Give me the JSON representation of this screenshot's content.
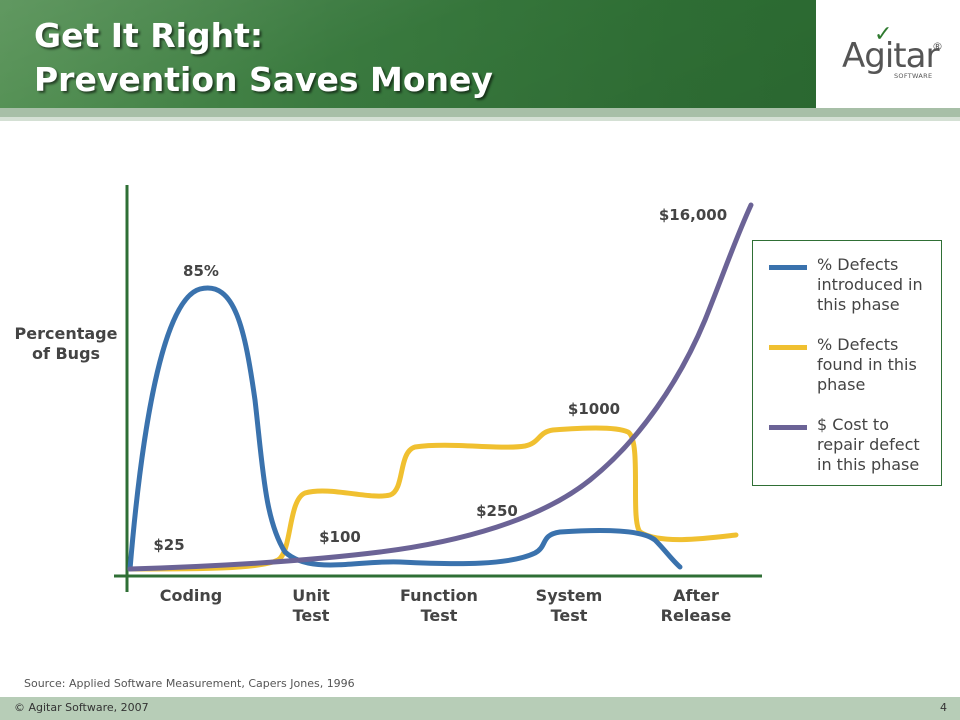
{
  "header": {
    "title_line1": "Get It Right:",
    "title_line2": "Prevention Saves Money",
    "logo_text": "Agitar",
    "logo_registered": "®",
    "logo_sub": "SOFTWARE",
    "logo_icon": "checkmark-icon"
  },
  "colors": {
    "header_green": "#3a7a3f",
    "defects_introduced": "#3a72ad",
    "defects_found": "#f0c030",
    "cost_to_repair": "#6b6396",
    "axis": "#2f6f35"
  },
  "chart_data": {
    "type": "line",
    "ylabel": "Percentage of Bugs",
    "categories": [
      "Coding",
      "Unit Test",
      "Function Test",
      "System Test",
      "After Release"
    ],
    "series": [
      {
        "name": "% Defects introduced in this phase",
        "peak_label": "85%",
        "peak_percent": 85,
        "values": [
          85,
          2,
          2,
          11,
          0
        ]
      },
      {
        "name": "% Defects found in this phase",
        "values": [
          0,
          20,
          35,
          40,
          10
        ]
      },
      {
        "name": "$ Cost to repair defect in this phase",
        "values": [
          25,
          100,
          250,
          1000,
          16000
        ],
        "labels": [
          "$25",
          "$100",
          "$250",
          "$1000",
          "$16,000"
        ]
      }
    ],
    "grid": false,
    "legend_position": "right"
  },
  "legend": {
    "items": [
      {
        "label": "% Defects introduced in this phase"
      },
      {
        "label": "% Defects found in this phase"
      },
      {
        "label": "$ Cost to repair defect in this phase"
      }
    ]
  },
  "source": "Source: Applied Software Measurement, Capers Jones, 1996",
  "footer": {
    "copyright": "© Agitar Software, 2007",
    "page": "4"
  }
}
